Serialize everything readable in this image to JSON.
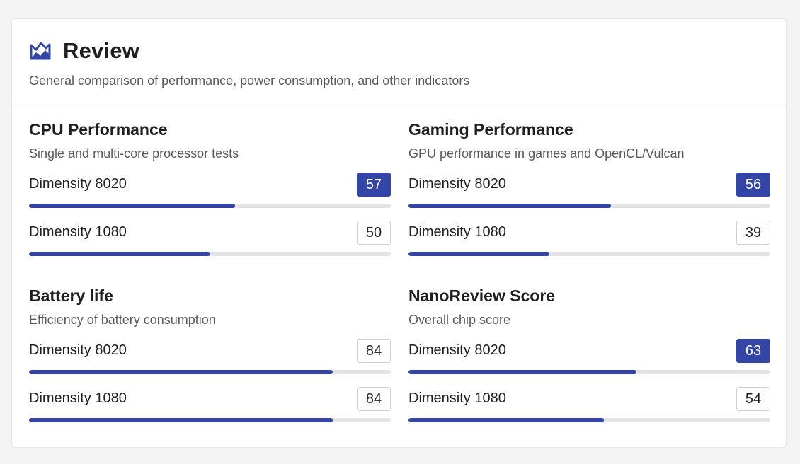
{
  "header": {
    "title": "Review",
    "subtitle": "General comparison of performance, power consumption, and other indicators",
    "icon": "review-chart-icon"
  },
  "colors": {
    "accent": "#3346a8",
    "track": "#e4e4e4"
  },
  "sections": [
    {
      "title": "CPU Performance",
      "description": "Single and multi-core processor tests",
      "rows": [
        {
          "chip": "Dimensity 8020",
          "score": "57",
          "winner": true,
          "fill_percent": 57
        },
        {
          "chip": "Dimensity 1080",
          "score": "50",
          "winner": false,
          "fill_percent": 50
        }
      ]
    },
    {
      "title": "Gaming Performance",
      "description": "GPU performance in games and OpenCL/Vulcan",
      "rows": [
        {
          "chip": "Dimensity 8020",
          "score": "56",
          "winner": true,
          "fill_percent": 56
        },
        {
          "chip": "Dimensity 1080",
          "score": "39",
          "winner": false,
          "fill_percent": 39
        }
      ]
    },
    {
      "title": "Battery life",
      "description": "Efficiency of battery consumption",
      "rows": [
        {
          "chip": "Dimensity 8020",
          "score": "84",
          "winner": false,
          "fill_percent": 84
        },
        {
          "chip": "Dimensity 1080",
          "score": "84",
          "winner": false,
          "fill_percent": 84
        }
      ]
    },
    {
      "title": "NanoReview Score",
      "description": "Overall chip score",
      "rows": [
        {
          "chip": "Dimensity 8020",
          "score": "63",
          "winner": true,
          "fill_percent": 63
        },
        {
          "chip": "Dimensity 1080",
          "score": "54",
          "winner": false,
          "fill_percent": 54
        }
      ]
    }
  ]
}
